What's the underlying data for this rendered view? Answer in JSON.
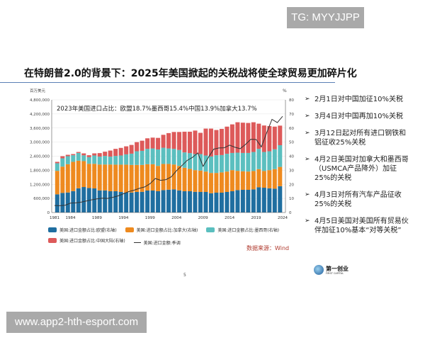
{
  "watermark_top": "TG: MYYJJPP",
  "watermark_bottom": "www.app2-hth-esport.com",
  "title": "在特朗普2.0的背景下：2025年美国掀起的关税战将使全球贸易更加碎片化",
  "bullets": [
    "2月1日对中国加征10%关税",
    "3月4日对中国再加10%关税",
    "3月12日起对所有进口钢铁和铝征收25%关税",
    "4月2日美国对加拿大和墨西哥（USMCA产品降外）加征25%的关税",
    "4月3日对所有汽车产品征收25%的关税",
    "4月5日美国对美国所有贸易伙伴加征10%基本“对等关税”"
  ],
  "source": "数据来源：Wind",
  "page_number": "5",
  "logo": {
    "name": "第一创业",
    "sub": "FIRST CAPITAL"
  },
  "chart_data": {
    "type": "bar+line",
    "annotation": "2023年美国进口占比：欧盟18.7%墨西哥15.4%中国13.9%加拿大13.7%",
    "left_unit": "百万美元",
    "right_unit": "%",
    "left_ylim": [
      0,
      4800000
    ],
    "left_ticks": [
      "0",
      "600,000",
      "1,200,000",
      "1,800,000",
      "2,400,000",
      "3,000,000",
      "3,600,000",
      "4,200,000",
      "4,800,000"
    ],
    "right_ylim": [
      0,
      80
    ],
    "right_ticks": [
      "0",
      "10",
      "20",
      "30",
      "40",
      "50",
      "60",
      "70",
      "80"
    ],
    "x_ticks": [
      "1981",
      "1984",
      "1989",
      "1994",
      "1999",
      "2004",
      "2009",
      "2014",
      "2019",
      "2024"
    ],
    "grid": true,
    "legend_position": "bottom",
    "bar_years": [
      1981,
      1982,
      1983,
      1984,
      1985,
      1986,
      1987,
      1988,
      1989,
      1990,
      1991,
      1992,
      1993,
      1994,
      1995,
      1996,
      1997,
      1998,
      1999,
      2000,
      2001,
      2002,
      2003,
      2004,
      2005,
      2006,
      2007,
      2008,
      2009,
      2010,
      2011,
      2012,
      2013,
      2014,
      2015,
      2016,
      2017,
      2018,
      2019,
      2020,
      2021,
      2022,
      2023
    ],
    "series": [
      {
        "name": "美国:进口金额占比:欧盟(右轴)",
        "color": "#1f6ea0",
        "values": [
          12.9,
          13.9,
          14.2,
          15.2,
          17.2,
          18.1,
          17.4,
          17.1,
          15.7,
          15.7,
          15.1,
          15.1,
          14.6,
          14.2,
          14.2,
          14.6,
          14.7,
          15.6,
          15.6,
          15.1,
          15.9,
          16.2,
          16.4,
          15.7,
          15.1,
          15.1,
          14.7,
          14.6,
          14.6,
          13.7,
          14.1,
          14.1,
          14.6,
          15.1,
          15.9,
          16.1,
          16.1,
          16.4,
          17.9,
          17.6,
          17.2,
          16.9,
          18.7
        ]
      },
      {
        "name": "美国:进口金额占比:加拿大(右轴)",
        "color": "#ee8a1f",
        "values": [
          16.7,
          18.7,
          20.1,
          20.8,
          19.6,
          18.4,
          17.2,
          17.5,
          18.4,
          18.4,
          19.0,
          18.9,
          19.4,
          19.8,
          19.6,
          19.2,
          19.1,
          18.7,
          18.7,
          18.0,
          18.6,
          18.3,
          17.7,
          17.4,
          16.7,
          15.9,
          15.4,
          15.2,
          14.5,
          14.4,
          14.0,
          14.4,
          14.5,
          15.0,
          13.7,
          13.2,
          13.0,
          13.1,
          12.9,
          11.9,
          12.9,
          13.9,
          13.7
        ]
      },
      {
        "name": "美国:进口金额占比:墨西哥(右轴)",
        "color": "#5bbfbf",
        "values": [
          5.4,
          5.9,
          5.7,
          4.7,
          5.5,
          4.1,
          4.7,
          5.9,
          5.6,
          6.1,
          5.6,
          6.2,
          6.5,
          7.3,
          8.0,
          9.7,
          10.0,
          10.9,
          11.2,
          11.7,
          11.5,
          11.0,
          11.1,
          11.3,
          10.9,
          11.2,
          11.4,
          11.7,
          11.4,
          11.7,
          12.6,
          12.3,
          12.6,
          12.2,
          12.9,
          13.0,
          13.2,
          13.5,
          14.4,
          13.5,
          13.4,
          14.1,
          15.4
        ]
      },
      {
        "name": "美国:进口金额占比:中国大陆(右轴)",
        "color": "#dd5a5a",
        "values": [
          1.0,
          1.5,
          1.0,
          0.8,
          0.7,
          1.4,
          1.4,
          1.5,
          2.5,
          3.0,
          4.3,
          5.0,
          5.4,
          5.7,
          6.2,
          6.5,
          7.2,
          7.5,
          7.7,
          8.2,
          9.2,
          10.9,
          12.0,
          12.8,
          14.7,
          15.2,
          16.7,
          15.1,
          19.1,
          19.8,
          17.9,
          18.6,
          19.3,
          20.3,
          21.6,
          21.5,
          21.3,
          21.1,
          17.9,
          18.8,
          17.9,
          16.1,
          13.9
        ]
      }
    ],
    "line": {
      "name": "美国:进口金额:季调",
      "color": "#333333",
      "years": [
        1981,
        1982,
        1983,
        1984,
        1985,
        1986,
        1987,
        1988,
        1989,
        1990,
        1991,
        1992,
        1993,
        1994,
        1995,
        1996,
        1997,
        1998,
        1999,
        2000,
        2001,
        2002,
        2003,
        2004,
        2005,
        2006,
        2007,
        2008,
        2009,
        2010,
        2011,
        2012,
        2013,
        2014,
        2015,
        2016,
        2017,
        2018,
        2019,
        2020,
        2021,
        2022,
        2023,
        2024
      ],
      "values": [
        300000,
        290000,
        310000,
        400000,
        410000,
        440000,
        490000,
        540000,
        580000,
        610000,
        600000,
        650000,
        710000,
        800000,
        890000,
        950000,
        1030000,
        1090000,
        1230000,
        1450000,
        1370000,
        1400000,
        1520000,
        1780000,
        2000000,
        2220000,
        2350000,
        2540000,
        1970000,
        2350000,
        2700000,
        2750000,
        2760000,
        2870000,
        2780000,
        2720000,
        2900000,
        3120000,
        3110000,
        2800000,
        3400000,
        3970000,
        3830000,
        4100000
      ]
    }
  }
}
